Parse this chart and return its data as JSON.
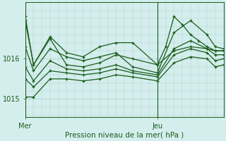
{
  "bg_color": "#d4eeed",
  "line_color": "#1a5c1a",
  "grid_color": "#aecece",
  "xlabel": "Pression niveau de la mer( hPa )",
  "yticks": [
    1015.0,
    1016.0
  ],
  "ylim": [
    1014.55,
    1017.4
  ],
  "xlim": [
    0,
    24
  ],
  "xtick_positions": [
    0,
    16
  ],
  "xtick_labels": [
    "Mer",
    "Jeu"
  ],
  "vline_positions": [
    0,
    16
  ],
  "lines": [
    {
      "x": [
        0,
        1,
        3,
        5,
        7,
        9,
        11,
        13,
        16,
        18,
        20,
        22,
        23,
        24
      ],
      "y": [
        1017.05,
        1015.85,
        1016.5,
        1015.85,
        1015.8,
        1015.9,
        1016.1,
        1016.0,
        1015.85,
        1016.2,
        1016.3,
        1016.25,
        1016.2,
        1016.2
      ]
    },
    {
      "x": [
        0,
        1,
        3,
        5,
        7,
        9,
        11,
        13,
        16,
        17,
        18,
        19,
        20,
        21,
        22,
        23,
        24
      ],
      "y": [
        1016.95,
        1015.85,
        1016.55,
        1016.15,
        1016.05,
        1016.3,
        1016.4,
        1016.4,
        1015.85,
        1016.3,
        1017.05,
        1016.85,
        1016.6,
        1016.45,
        1016.3,
        1016.2,
        1016.2
      ]
    },
    {
      "x": [
        0,
        1,
        3,
        5,
        7,
        9,
        11,
        13,
        16,
        18,
        20,
        22,
        23,
        24
      ],
      "y": [
        1016.3,
        1015.7,
        1016.25,
        1016.05,
        1015.95,
        1016.05,
        1016.15,
        1015.8,
        1015.65,
        1016.65,
        1016.95,
        1016.6,
        1016.3,
        1016.25
      ]
    },
    {
      "x": [
        0,
        1,
        3,
        5,
        7,
        9,
        11,
        13,
        16,
        18,
        20,
        22,
        23,
        24
      ],
      "y": [
        1015.8,
        1015.45,
        1015.95,
        1015.75,
        1015.7,
        1015.75,
        1015.85,
        1015.7,
        1015.6,
        1016.25,
        1016.45,
        1016.25,
        1016.1,
        1016.1
      ]
    },
    {
      "x": [
        0,
        1,
        3,
        5,
        7,
        9,
        11,
        13,
        16,
        18,
        20,
        22,
        23,
        24
      ],
      "y": [
        1015.5,
        1015.3,
        1015.7,
        1015.65,
        1015.6,
        1015.65,
        1015.75,
        1015.65,
        1015.55,
        1016.1,
        1016.25,
        1016.15,
        1015.95,
        1016.0
      ]
    },
    {
      "x": [
        0,
        1,
        3,
        5,
        7,
        9,
        11,
        13,
        16,
        18,
        20,
        22,
        23,
        24
      ],
      "y": [
        1015.05,
        1015.05,
        1015.5,
        1015.5,
        1015.45,
        1015.5,
        1015.6,
        1015.55,
        1015.45,
        1015.9,
        1016.05,
        1016.0,
        1015.8,
        1015.85
      ]
    }
  ],
  "marker": "+",
  "marker_size": 3.5,
  "line_width": 0.9
}
